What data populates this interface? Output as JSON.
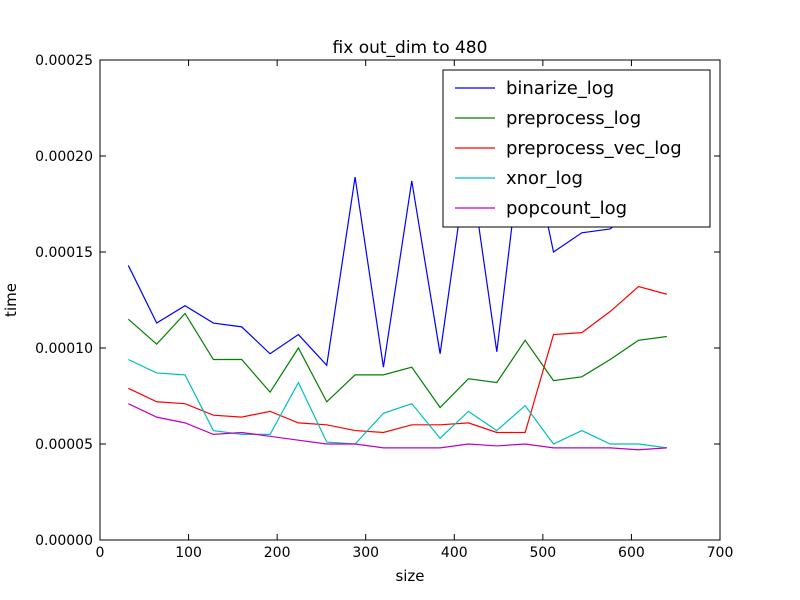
{
  "chart_data": {
    "type": "line",
    "title": "fix out_dim to 480",
    "xlabel": "size",
    "ylabel": "time",
    "xlim": [
      0,
      700
    ],
    "ylim": [
      0,
      0.00025
    ],
    "xticks": [
      "0",
      "100",
      "200",
      "300",
      "400",
      "500",
      "600",
      "700"
    ],
    "yticks": [
      "0.00000",
      "0.00005",
      "0.00010",
      "0.00015",
      "0.00020",
      "0.00025"
    ],
    "grid": false,
    "legend_position": "top-right",
    "x": [
      32,
      64,
      96,
      128,
      160,
      192,
      224,
      256,
      288,
      320,
      352,
      384,
      416,
      448,
      480,
      512,
      544,
      576,
      608,
      640
    ],
    "series": [
      {
        "name": "binarize_log",
        "color": "#0000ff",
        "values": [
          0.000143,
          0.000113,
          0.000122,
          0.000113,
          0.000111,
          9.7e-05,
          0.000107,
          9.1e-05,
          0.000189,
          9e-05,
          0.000187,
          9.7e-05,
          0.000201,
          9.8e-05,
          0.000221,
          0.00015,
          0.00016,
          0.000162,
          0.000175,
          0.000182
        ]
      },
      {
        "name": "preprocess_log",
        "color": "#008000",
        "values": [
          0.000115,
          0.000102,
          0.000118,
          9.4e-05,
          9.4e-05,
          7.7e-05,
          0.0001,
          7.2e-05,
          8.6e-05,
          8.6e-05,
          9e-05,
          6.9e-05,
          8.4e-05,
          8.2e-05,
          0.000104,
          8.3e-05,
          8.5e-05,
          9.4e-05,
          0.000104,
          0.000106
        ]
      },
      {
        "name": "preprocess_vec_log",
        "color": "#ff0000",
        "values": [
          7.9e-05,
          7.2e-05,
          7.1e-05,
          6.5e-05,
          6.4e-05,
          6.7e-05,
          6.1e-05,
          6e-05,
          5.7e-05,
          5.6e-05,
          6e-05,
          6e-05,
          6.1e-05,
          5.6e-05,
          5.6e-05,
          0.000107,
          0.000108,
          0.000119,
          0.000132,
          0.000128
        ]
      },
      {
        "name": "xnor_log",
        "color": "#00bfbf",
        "values": [
          9.4e-05,
          8.7e-05,
          8.6e-05,
          5.7e-05,
          5.5e-05,
          5.5e-05,
          8.2e-05,
          5.1e-05,
          5e-05,
          6.6e-05,
          7.1e-05,
          5.3e-05,
          6.7e-05,
          5.7e-05,
          7e-05,
          5e-05,
          5.7e-05,
          5e-05,
          5e-05,
          4.8e-05
        ]
      },
      {
        "name": "popcount_log",
        "color": "#bf00bf",
        "values": [
          7.1e-05,
          6.4e-05,
          6.1e-05,
          5.5e-05,
          5.6e-05,
          5.4e-05,
          5.2e-05,
          5e-05,
          5e-05,
          4.8e-05,
          4.8e-05,
          4.8e-05,
          5e-05,
          4.9e-05,
          5e-05,
          4.8e-05,
          4.8e-05,
          4.8e-05,
          4.7e-05,
          4.8e-05
        ]
      }
    ]
  }
}
